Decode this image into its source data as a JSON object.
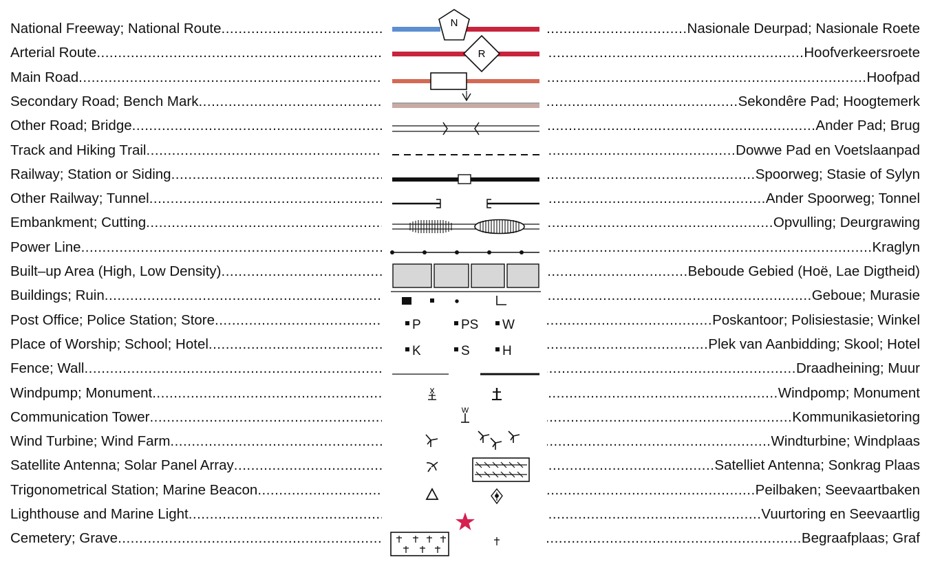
{
  "colors": {
    "freeway_blue": "#5b8fd0",
    "route_red": "#c8243c",
    "main_road": "#d46a55",
    "secondary_road": "#c9aaa4",
    "lighthouse_star": "#d62050",
    "built_up_fill": "#d7d7d7"
  },
  "dots": "........................................................................................................................................",
  "rows": [
    {
      "en": "National Freeway; National Route",
      "af": "Nasionale  Deurpad; Nasionale Roete",
      "symbol": "freeway-route-icon"
    },
    {
      "en": "Arterial Route",
      "af": "Hoofverkeersroete",
      "symbol": "arterial-route-icon"
    },
    {
      "en": "Main Road",
      "af": "Hoofpad",
      "symbol": "main-road-icon"
    },
    {
      "en": "Secondary Road; Bench Mark",
      "af": "Sekondêre Pad; Hoogtemerk",
      "symbol": "secondary-road-benchmark-icon"
    },
    {
      "en": "Other Road; Bridge",
      "af": "Ander Pad; Brug",
      "symbol": "other-road-bridge-icon"
    },
    {
      "en": "Track and Hiking Trail",
      "af": "Dowwe Pad en Voetslaanpad",
      "symbol": "track-trail-icon"
    },
    {
      "en": "Railway; Station or Siding",
      "af": "Spoorweg; Stasie of Sylyn",
      "symbol": "railway-station-icon"
    },
    {
      "en": "Other Railway; Tunnel",
      "af": "Ander Spoorweg; Tonnel",
      "symbol": "other-railway-tunnel-icon"
    },
    {
      "en": "Embankment; Cutting",
      "af": "Opvulling; Deurgrawing",
      "symbol": "embankment-cutting-icon"
    },
    {
      "en": "Power Line",
      "af": "Kraglyn",
      "symbol": "power-line-icon"
    },
    {
      "en": "Built–up Area (High, Low Density)",
      "af": "Beboude Gebied (Hoë, Lae Digtheid)",
      "symbol": "built-up-area-icon"
    },
    {
      "en": "Buildings; Ruin",
      "af": "Geboue; Murasie",
      "symbol": "buildings-ruin-icon"
    },
    {
      "en": "Post Office; Police Station; Store",
      "af": "Poskantoor; Polisiestasie; Winkel",
      "symbol": "post-police-store-icon"
    },
    {
      "en": "Place of Worship; School; Hotel",
      "af": "Plek van Aanbidding; Skool; Hotel",
      "symbol": "worship-school-hotel-icon"
    },
    {
      "en": "Fence; Wall",
      "af": "Draadheining; Muur",
      "symbol": "fence-wall-icon"
    },
    {
      "en": "Windpump; Monument",
      "af": "Windpomp; Monument",
      "symbol": "windpump-monument-icon"
    },
    {
      "en": "Communication Tower",
      "af": "Kommunikasietoring",
      "symbol": "communication-tower-icon"
    },
    {
      "en": "Wind Turbine; Wind Farm",
      "af": "Windturbine; Windplaas",
      "symbol": "wind-turbine-farm-icon"
    },
    {
      "en": "Satellite Antenna; Solar Panel Array",
      "af": "Satelliet Antenna; Sonkrag Plaas",
      "symbol": "satellite-solar-icon"
    },
    {
      "en": "Trigonometrical Station; Marine Beacon",
      "af": "Peilbaken; Seevaartbaken",
      "symbol": "trig-beacon-icon"
    },
    {
      "en": "Lighthouse and Marine Light",
      "af": "Vuurtoring en Seevaartlig",
      "symbol": "lighthouse-icon"
    },
    {
      "en": "Cemetery; Grave",
      "af": "Begraafplaas; Graf",
      "symbol": "cemetery-grave-icon"
    }
  ],
  "symbol_labels": {
    "national_route": "N",
    "arterial_route": "R",
    "benchmark": "V",
    "windpump": "x",
    "communication_tower": "W",
    "post_office": "P",
    "police_station": "PS",
    "store": "W",
    "worship": "K",
    "school": "S",
    "hotel": "H",
    "ruin": "L"
  }
}
